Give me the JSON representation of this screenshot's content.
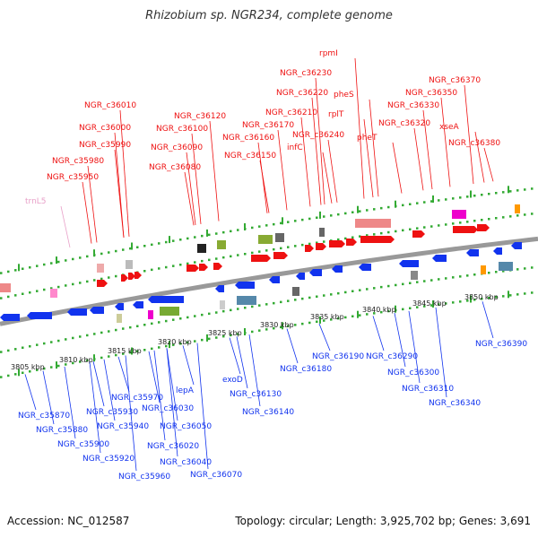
{
  "header": {
    "title": "Rhizobium sp. NGR234, complete genome"
  },
  "footer": {
    "accession": "Accession: NC_012587",
    "topology": "Topology: circular; Length: 3,925,702 bp; Genes: 3,691"
  },
  "colors": {
    "forward_gene": "#ee1111",
    "reverse_gene": "#1133ee",
    "rna_gene": "#ff88cc",
    "backbone": "#888888",
    "tick": "#33aa33"
  },
  "kbp_ticks": [
    "3805 kbp",
    "3810 kbp",
    "3815 kbp",
    "3820 kbp",
    "3825 kbp",
    "3830 kbp",
    "3835 kbp",
    "3840 kbp",
    "3845 kbp",
    "3850 kbp"
  ],
  "top_labels": [
    {
      "text": "trnL5",
      "type": "rna"
    },
    {
      "text": "NGR_c35950",
      "type": "fwd"
    },
    {
      "text": "NGR_c35980",
      "type": "fwd"
    },
    {
      "text": "NGR_c35990",
      "type": "fwd"
    },
    {
      "text": "NGR_c36000",
      "type": "fwd"
    },
    {
      "text": "NGR_c36010",
      "type": "fwd"
    },
    {
      "text": "NGR_c36080",
      "type": "fwd"
    },
    {
      "text": "NGR_c36090",
      "type": "fwd"
    },
    {
      "text": "NGR_c36100",
      "type": "fwd"
    },
    {
      "text": "NGR_c36120",
      "type": "fwd"
    },
    {
      "text": "NGR_c36150",
      "type": "fwd"
    },
    {
      "text": "NGR_c36160",
      "type": "fwd"
    },
    {
      "text": "NGR_c36170",
      "type": "fwd"
    },
    {
      "text": "infC",
      "type": "fwd"
    },
    {
      "text": "NGR_c36210",
      "type": "fwd"
    },
    {
      "text": "NGR_c36220",
      "type": "fwd"
    },
    {
      "text": "NGR_c36230",
      "type": "fwd"
    },
    {
      "text": "rpmI",
      "type": "fwd"
    },
    {
      "text": "NGR_c36240",
      "type": "fwd"
    },
    {
      "text": "rplT",
      "type": "fwd"
    },
    {
      "text": "pheS",
      "type": "fwd"
    },
    {
      "text": "pheT",
      "type": "fwd"
    },
    {
      "text": "NGR_c36320",
      "type": "fwd"
    },
    {
      "text": "NGR_c36330",
      "type": "fwd"
    },
    {
      "text": "NGR_c36350",
      "type": "fwd"
    },
    {
      "text": "NGR_c36370",
      "type": "fwd"
    },
    {
      "text": "xseA",
      "type": "fwd"
    },
    {
      "text": "NGR_c36380",
      "type": "fwd"
    }
  ],
  "bottom_labels": [
    {
      "text": "NGR_c35870"
    },
    {
      "text": "NGR_c35880"
    },
    {
      "text": "NGR_c35900"
    },
    {
      "text": "NGR_c35920"
    },
    {
      "text": "NGR_c35930"
    },
    {
      "text": "NGR_c35940"
    },
    {
      "text": "NGR_c35960"
    },
    {
      "text": "NGR_c35970"
    },
    {
      "text": "NGR_c36020"
    },
    {
      "text": "NGR_c36030"
    },
    {
      "text": "NGR_c36040"
    },
    {
      "text": "NGR_c36050"
    },
    {
      "text": "lepA"
    },
    {
      "text": "NGR_c36070"
    },
    {
      "text": "exoD"
    },
    {
      "text": "NGR_c36130"
    },
    {
      "text": "NGR_c36140"
    },
    {
      "text": "NGR_c36180"
    },
    {
      "text": "NGR_c36190"
    },
    {
      "text": "NGR_c36290"
    },
    {
      "text": "NGR_c36300"
    },
    {
      "text": "NGR_c36310"
    },
    {
      "text": "NGR_c36340"
    },
    {
      "text": "NGR_c36390"
    }
  ]
}
